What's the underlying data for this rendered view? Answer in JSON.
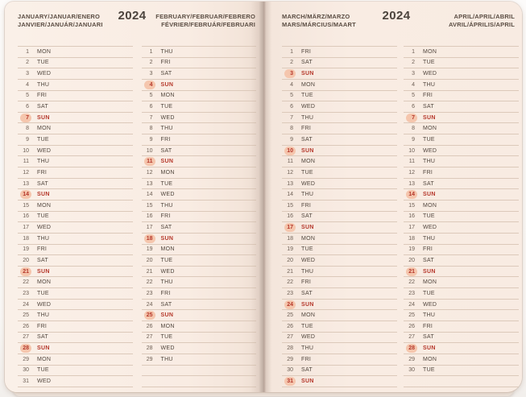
{
  "year": "2024",
  "layout_info": {
    "row_slots": 31,
    "highlight_weekday": "SUN"
  },
  "colors": {
    "page_background": "#f9ece3",
    "rule_line": "#dcc9ba",
    "text": "#51463d",
    "day_number": "#6e6055",
    "sunday_red": "#b5372a",
    "sunday_pill": "#f5c6ad",
    "year_text": "#4c443d"
  },
  "pages": [
    {
      "header_left": "JANUARY/JANUAR/ENERO\nJANVIER/JANUÁR/JANUARI",
      "year": "2024",
      "header_right": "FEBRUARY/FEBRUAR/FEBRERO\nFÉVRIER/FEBRUÁR/FEBRUARI",
      "columns": [
        {
          "name": "JANUARY",
          "days": [
            {
              "n": 1,
              "w": "MON"
            },
            {
              "n": 2,
              "w": "TUE"
            },
            {
              "n": 3,
              "w": "WED"
            },
            {
              "n": 4,
              "w": "THU"
            },
            {
              "n": 5,
              "w": "FRI"
            },
            {
              "n": 6,
              "w": "SAT"
            },
            {
              "n": 7,
              "w": "SUN"
            },
            {
              "n": 8,
              "w": "MON"
            },
            {
              "n": 9,
              "w": "TUE"
            },
            {
              "n": 10,
              "w": "WED"
            },
            {
              "n": 11,
              "w": "THU"
            },
            {
              "n": 12,
              "w": "FRI"
            },
            {
              "n": 13,
              "w": "SAT"
            },
            {
              "n": 14,
              "w": "SUN"
            },
            {
              "n": 15,
              "w": "MON"
            },
            {
              "n": 16,
              "w": "TUE"
            },
            {
              "n": 17,
              "w": "WED"
            },
            {
              "n": 18,
              "w": "THU"
            },
            {
              "n": 19,
              "w": "FRI"
            },
            {
              "n": 20,
              "w": "SAT"
            },
            {
              "n": 21,
              "w": "SUN"
            },
            {
              "n": 22,
              "w": "MON"
            },
            {
              "n": 23,
              "w": "TUE"
            },
            {
              "n": 24,
              "w": "WED"
            },
            {
              "n": 25,
              "w": "THU"
            },
            {
              "n": 26,
              "w": "FRI"
            },
            {
              "n": 27,
              "w": "SAT"
            },
            {
              "n": 28,
              "w": "SUN"
            },
            {
              "n": 29,
              "w": "MON"
            },
            {
              "n": 30,
              "w": "TUE"
            },
            {
              "n": 31,
              "w": "WED"
            }
          ]
        },
        {
          "name": "FEBRUARY",
          "days": [
            {
              "n": 1,
              "w": "THU"
            },
            {
              "n": 2,
              "w": "FRI"
            },
            {
              "n": 3,
              "w": "SAT"
            },
            {
              "n": 4,
              "w": "SUN"
            },
            {
              "n": 5,
              "w": "MON"
            },
            {
              "n": 6,
              "w": "TUE"
            },
            {
              "n": 7,
              "w": "WED"
            },
            {
              "n": 8,
              "w": "THU"
            },
            {
              "n": 9,
              "w": "FRI"
            },
            {
              "n": 10,
              "w": "SAT"
            },
            {
              "n": 11,
              "w": "SUN"
            },
            {
              "n": 12,
              "w": "MON"
            },
            {
              "n": 13,
              "w": "TUE"
            },
            {
              "n": 14,
              "w": "WED"
            },
            {
              "n": 15,
              "w": "THU"
            },
            {
              "n": 16,
              "w": "FRI"
            },
            {
              "n": 17,
              "w": "SAT"
            },
            {
              "n": 18,
              "w": "SUN"
            },
            {
              "n": 19,
              "w": "MON"
            },
            {
              "n": 20,
              "w": "TUE"
            },
            {
              "n": 21,
              "w": "WED"
            },
            {
              "n": 22,
              "w": "THU"
            },
            {
              "n": 23,
              "w": "FRI"
            },
            {
              "n": 24,
              "w": "SAT"
            },
            {
              "n": 25,
              "w": "SUN"
            },
            {
              "n": 26,
              "w": "MON"
            },
            {
              "n": 27,
              "w": "TUE"
            },
            {
              "n": 28,
              "w": "WED"
            },
            {
              "n": 29,
              "w": "THU"
            }
          ]
        }
      ]
    },
    {
      "header_left": "MARCH/MÄRZ/MARZO\nMARS/MÁRCIUS/MAART",
      "year": "2024",
      "header_right": "APRIL/APRIL/ABRIL\nAVRIL/ÁPRILIS/APRIL",
      "columns": [
        {
          "name": "MARCH",
          "days": [
            {
              "n": 1,
              "w": "FRI"
            },
            {
              "n": 2,
              "w": "SAT"
            },
            {
              "n": 3,
              "w": "SUN"
            },
            {
              "n": 4,
              "w": "MON"
            },
            {
              "n": 5,
              "w": "TUE"
            },
            {
              "n": 6,
              "w": "WED"
            },
            {
              "n": 7,
              "w": "THU"
            },
            {
              "n": 8,
              "w": "FRI"
            },
            {
              "n": 9,
              "w": "SAT"
            },
            {
              "n": 10,
              "w": "SUN"
            },
            {
              "n": 11,
              "w": "MON"
            },
            {
              "n": 12,
              "w": "TUE"
            },
            {
              "n": 13,
              "w": "WED"
            },
            {
              "n": 14,
              "w": "THU"
            },
            {
              "n": 15,
              "w": "FRI"
            },
            {
              "n": 16,
              "w": "SAT"
            },
            {
              "n": 17,
              "w": "SUN"
            },
            {
              "n": 18,
              "w": "MON"
            },
            {
              "n": 19,
              "w": "TUE"
            },
            {
              "n": 20,
              "w": "WED"
            },
            {
              "n": 21,
              "w": "THU"
            },
            {
              "n": 22,
              "w": "FRI"
            },
            {
              "n": 23,
              "w": "SAT"
            },
            {
              "n": 24,
              "w": "SUN"
            },
            {
              "n": 25,
              "w": "MON"
            },
            {
              "n": 26,
              "w": "TUE"
            },
            {
              "n": 27,
              "w": "WED"
            },
            {
              "n": 28,
              "w": "THU"
            },
            {
              "n": 29,
              "w": "FRI"
            },
            {
              "n": 30,
              "w": "SAT"
            },
            {
              "n": 31,
              "w": "SUN"
            }
          ]
        },
        {
          "name": "APRIL",
          "days": [
            {
              "n": 1,
              "w": "MON"
            },
            {
              "n": 2,
              "w": "TUE"
            },
            {
              "n": 3,
              "w": "WED"
            },
            {
              "n": 4,
              "w": "THU"
            },
            {
              "n": 5,
              "w": "FRI"
            },
            {
              "n": 6,
              "w": "SAT"
            },
            {
              "n": 7,
              "w": "SUN"
            },
            {
              "n": 8,
              "w": "MON"
            },
            {
              "n": 9,
              "w": "TUE"
            },
            {
              "n": 10,
              "w": "WED"
            },
            {
              "n": 11,
              "w": "THU"
            },
            {
              "n": 12,
              "w": "FRI"
            },
            {
              "n": 13,
              "w": "SAT"
            },
            {
              "n": 14,
              "w": "SUN"
            },
            {
              "n": 15,
              "w": "MON"
            },
            {
              "n": 16,
              "w": "TUE"
            },
            {
              "n": 17,
              "w": "WED"
            },
            {
              "n": 18,
              "w": "THU"
            },
            {
              "n": 19,
              "w": "FRI"
            },
            {
              "n": 20,
              "w": "SAT"
            },
            {
              "n": 21,
              "w": "SUN"
            },
            {
              "n": 22,
              "w": "MON"
            },
            {
              "n": 23,
              "w": "TUE"
            },
            {
              "n": 24,
              "w": "WED"
            },
            {
              "n": 25,
              "w": "THU"
            },
            {
              "n": 26,
              "w": "FRI"
            },
            {
              "n": 27,
              "w": "SAT"
            },
            {
              "n": 28,
              "w": "SUN"
            },
            {
              "n": 29,
              "w": "MON"
            },
            {
              "n": 30,
              "w": "TUE"
            }
          ]
        }
      ]
    }
  ]
}
